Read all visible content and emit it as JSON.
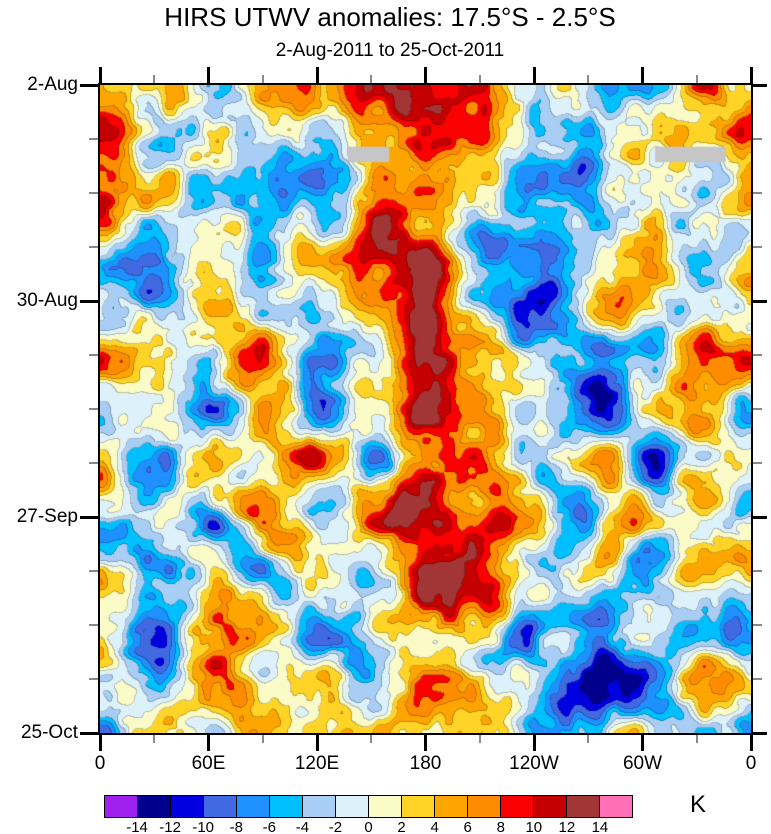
{
  "chart_data": {
    "type": "heatmap",
    "subtype": "hovmoller-filled-contour",
    "title": "HIRS UTWV anomalies: 17.5°S - 2.5°S",
    "subtitle": "2-Aug-2011 to 25-Oct-2011",
    "units_label": "K",
    "x_axis": {
      "ticks": [
        "0",
        "60E",
        "120E",
        "180",
        "120W",
        "60W",
        "0"
      ],
      "tick_lons": [
        0,
        60,
        120,
        180,
        240,
        300,
        360
      ],
      "minor_lons": [
        30,
        90,
        150,
        210,
        270,
        330
      ],
      "range_deg": [
        0,
        360
      ]
    },
    "y_axis": {
      "ticks": [
        "2-Aug",
        "30-Aug",
        "27-Sep",
        "25-Oct"
      ],
      "tick_days": [
        0,
        28,
        56,
        84
      ],
      "minor_step_days": 7,
      "range_days": [
        0,
        84
      ],
      "direction": "top-to-bottom"
    },
    "levels": [
      -14,
      -12,
      -10,
      -8,
      -6,
      -4,
      -2,
      0,
      2,
      4,
      6,
      8,
      10,
      12,
      14
    ],
    "colorbar_tick_labels": [
      "-14",
      "-12",
      "-10",
      "-8",
      "-6",
      "-4",
      "-2",
      "0",
      "2",
      "4",
      "6",
      "8",
      "10",
      "12",
      "14"
    ],
    "palette": [
      "#A020F0",
      "#00008C",
      "#0000E0",
      "#4169E1",
      "#1E90FF",
      "#00BFFF",
      "#A9CEF5",
      "#DDF1FB",
      "#FBFBC8",
      "#FFD427",
      "#FFA500",
      "#FF8C00",
      "#FA0000",
      "#C40000",
      "#A23535",
      "#FF70B8"
    ],
    "missing_data_color": "#C6C6C6",
    "missing_data_regions": [
      {
        "lon_range": [
          137,
          160
        ],
        "day_range": [
          8,
          10
        ]
      },
      {
        "lon_range": [
          307,
          346
        ],
        "day_range": [
          8,
          10
        ]
      }
    ],
    "grid": {
      "lons": [
        0,
        30,
        60,
        90,
        120,
        150,
        180,
        210,
        240,
        270,
        300,
        330,
        360
      ],
      "days": [
        0,
        7,
        14,
        21,
        28,
        35,
        42,
        49,
        56,
        63,
        70,
        77,
        84
      ],
      "units": "K",
      "values": [
        [
          3,
          4,
          -4,
          4,
          6,
          9,
          10,
          6,
          -3,
          -4,
          -2,
          3,
          3
        ],
        [
          8,
          -4,
          3,
          -6,
          -2,
          5,
          6,
          8,
          -2,
          -6,
          -1,
          5,
          8
        ],
        [
          5,
          3,
          -5,
          -8,
          -3,
          4,
          12,
          6,
          -5,
          -3,
          3,
          -2,
          5
        ],
        [
          -2,
          -4,
          2,
          -5,
          3,
          8,
          10,
          -8,
          -10,
          -2,
          5,
          -6,
          -2
        ],
        [
          4,
          -5,
          6,
          -6,
          -4,
          3,
          12,
          -4,
          -8,
          3,
          6,
          -4,
          4
        ],
        [
          6,
          4,
          -3,
          8,
          -6,
          -3,
          14,
          5,
          -6,
          -10,
          -4,
          6,
          6
        ],
        [
          -3,
          5,
          -6,
          5,
          -4,
          6,
          8,
          3,
          -5,
          -12,
          -3,
          4,
          -3
        ],
        [
          4,
          -6,
          3,
          -3,
          5,
          -4,
          6,
          10,
          -3,
          5,
          -6,
          3,
          4
        ],
        [
          -4,
          3,
          -8,
          4,
          -3,
          5,
          12,
          8,
          4,
          -4,
          5,
          -3,
          -4
        ],
        [
          3,
          -5,
          4,
          -6,
          4,
          -3,
          14,
          10,
          -4,
          3,
          -5,
          4,
          3
        ],
        [
          -5,
          -10,
          5,
          3,
          -5,
          4,
          8,
          6,
          -6,
          -8,
          4,
          -4,
          -5
        ],
        [
          4,
          -12,
          3,
          -4,
          3,
          -6,
          6,
          -3,
          -5,
          -12,
          -6,
          5,
          4
        ],
        [
          -3,
          4,
          -4,
          5,
          -3,
          3,
          4,
          5,
          -8,
          -10,
          4,
          -4,
          -3
        ]
      ]
    },
    "texture_noise": {
      "seed": 11,
      "octaves": [
        {
          "freq": 14,
          "amp": 5.2
        },
        {
          "freq": 28,
          "amp": 3.0
        },
        {
          "freq": 56,
          "amp": 1.6
        }
      ]
    }
  }
}
